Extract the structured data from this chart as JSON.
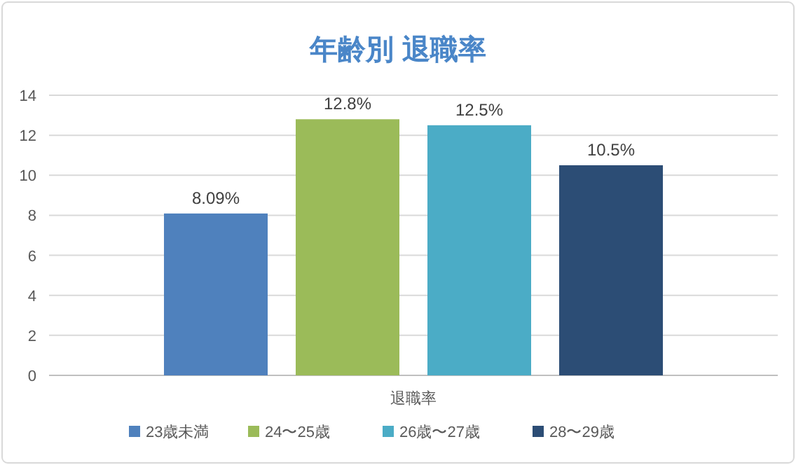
{
  "chart_data": {
    "type": "bar",
    "title": "年齢別 退職率",
    "categories": [
      "退職率"
    ],
    "series": [
      {
        "name": "23歳未満",
        "color": "#4f81bd",
        "values": [
          8.09
        ],
        "value_labels": [
          "8.09%"
        ]
      },
      {
        "name": "24〜25歳",
        "color": "#9bbb59",
        "values": [
          12.8
        ],
        "value_labels": [
          "12.8%"
        ]
      },
      {
        "name": "26歳〜27歳",
        "color": "#4bacc6",
        "values": [
          12.5
        ],
        "value_labels": [
          "12.5%"
        ]
      },
      {
        "name": "28〜29歳",
        "color": "#2c4d75",
        "values": [
          10.5
        ],
        "value_labels": [
          "10.5%"
        ]
      }
    ],
    "ylim": [
      0,
      14
    ],
    "yticks": [
      0,
      2,
      4,
      6,
      8,
      10,
      12,
      14
    ],
    "grid": "y",
    "legend": "bottom"
  }
}
